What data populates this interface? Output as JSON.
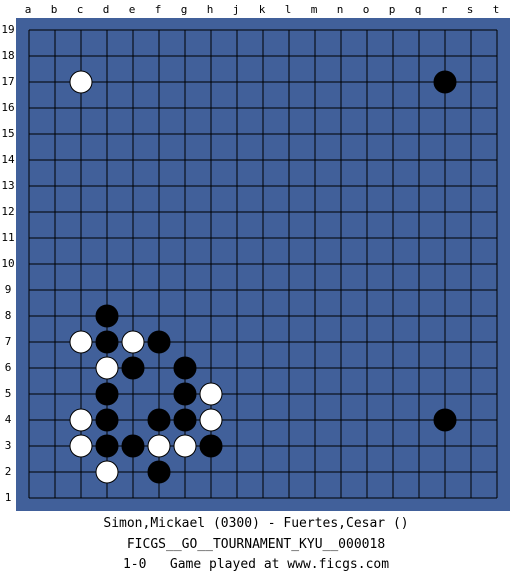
{
  "board": {
    "columns": [
      "a",
      "b",
      "c",
      "d",
      "e",
      "f",
      "g",
      "h",
      "j",
      "k",
      "l",
      "m",
      "n",
      "o",
      "p",
      "q",
      "r",
      "s",
      "t"
    ],
    "rows": [
      19,
      18,
      17,
      16,
      15,
      14,
      13,
      12,
      11,
      10,
      9,
      8,
      7,
      6,
      5,
      4,
      3,
      2,
      1
    ],
    "stones": [
      {
        "color": "white",
        "column": "c",
        "row": 17
      },
      {
        "color": "black",
        "column": "r",
        "row": 17
      },
      {
        "color": "black",
        "column": "d",
        "row": 8
      },
      {
        "color": "white",
        "column": "c",
        "row": 7
      },
      {
        "color": "black",
        "column": "d",
        "row": 7
      },
      {
        "color": "white",
        "column": "e",
        "row": 7
      },
      {
        "color": "black",
        "column": "f",
        "row": 7
      },
      {
        "color": "white",
        "column": "d",
        "row": 6
      },
      {
        "color": "black",
        "column": "e",
        "row": 6
      },
      {
        "color": "black",
        "column": "g",
        "row": 6
      },
      {
        "color": "black",
        "column": "d",
        "row": 5
      },
      {
        "color": "black",
        "column": "g",
        "row": 5
      },
      {
        "color": "white",
        "column": "h",
        "row": 5
      },
      {
        "color": "white",
        "column": "c",
        "row": 4
      },
      {
        "color": "black",
        "column": "d",
        "row": 4
      },
      {
        "color": "black",
        "column": "f",
        "row": 4
      },
      {
        "color": "black",
        "column": "g",
        "row": 4
      },
      {
        "color": "white",
        "column": "h",
        "row": 4
      },
      {
        "color": "black",
        "column": "r",
        "row": 4
      },
      {
        "color": "white",
        "column": "c",
        "row": 3
      },
      {
        "color": "black",
        "column": "d",
        "row": 3
      },
      {
        "color": "black",
        "column": "e",
        "row": 3
      },
      {
        "color": "white",
        "column": "f",
        "row": 3
      },
      {
        "color": "white",
        "column": "g",
        "row": 3
      },
      {
        "color": "black",
        "column": "h",
        "row": 3
      },
      {
        "color": "white",
        "column": "d",
        "row": 2
      },
      {
        "color": "black",
        "column": "f",
        "row": 2
      }
    ]
  },
  "footer": {
    "players": "Simon,Mickael (0300) - Fuertes,Cesar ()",
    "event": "FICGS__GO__TOURNAMENT_KYU__000018",
    "result": "1-0   Game played at www.ficgs.com"
  }
}
